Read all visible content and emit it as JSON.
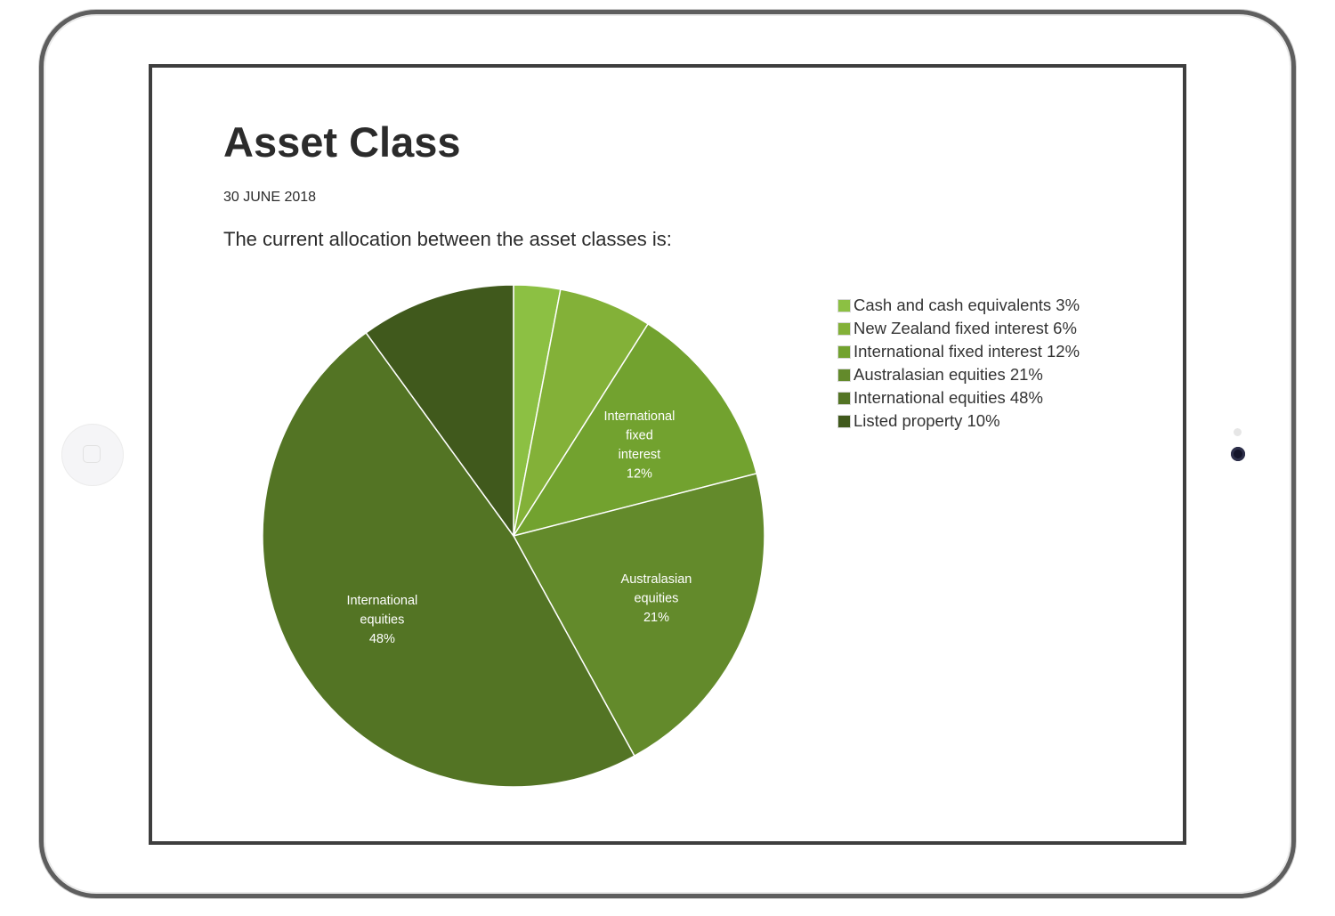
{
  "page": {
    "title": "Asset Class",
    "date": "30 JUNE 2018",
    "intro": "The current allocation between the asset classes is:"
  },
  "chart_data": {
    "type": "pie",
    "title": "",
    "categories": [
      "Cash and cash equivalents",
      "New Zealand fixed interest",
      "International fixed interest",
      "Australasian equities",
      "International equities",
      "Listed property"
    ],
    "values": [
      3,
      6,
      12,
      21,
      48,
      10
    ],
    "colors": [
      "#8cc043",
      "#83b138",
      "#72a22f",
      "#638a2b",
      "#537424",
      "#40591c"
    ],
    "legend": {
      "position": "right",
      "items": [
        "Cash and cash equivalents 3%",
        "New Zealand fixed interest 6%",
        "International fixed interest 12%",
        "Australasian equities 21%",
        "International equities 48%",
        "Listed property 10%"
      ]
    },
    "slice_labels": [
      null,
      null,
      [
        "International",
        "fixed",
        "interest",
        "12%"
      ],
      [
        "Australasian",
        "equities",
        "21%"
      ],
      [
        "International",
        "equities",
        "48%"
      ],
      null
    ]
  }
}
